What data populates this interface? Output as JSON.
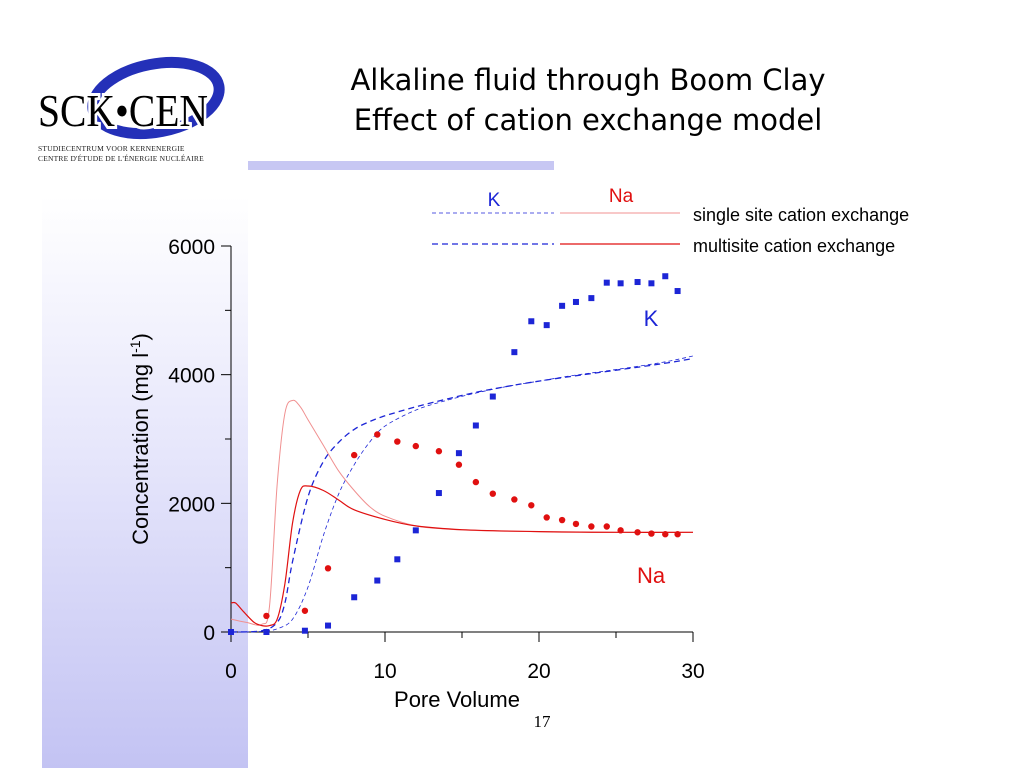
{
  "slide": {
    "title_line1": "Alkaline fluid through Boom Clay",
    "title_line2": "Effect of cation exchange model",
    "number": "17"
  },
  "logo": {
    "text": "SCK•CEN",
    "subtitle_line1": "STUDIECENTRUM VOOR KERNENERGIE",
    "subtitle_line2": "CENTRE D'ÉTUDE DE L'ÉNERGIE NUCLÉAIRE"
  },
  "colors": {
    "K": "#1c25d6",
    "Na": "#e01010",
    "Na_light": "#f09090",
    "accent_bar": "#c7c7f3"
  },
  "chart_data": {
    "type": "scatter",
    "xlabel": "Pore Volume",
    "ylabel": "Concentration (mg l",
    "ylabel_sup": "-1",
    "ylabel_end": ")",
    "xlim": [
      0,
      30
    ],
    "ylim": [
      0,
      6000
    ],
    "xticks": [
      0,
      10,
      20,
      30
    ],
    "yticks": [
      0,
      2000,
      4000,
      6000
    ],
    "grid": false,
    "legend": {
      "placement": "top-right",
      "col_K": "K",
      "col_Na": "Na",
      "row_single": "single site cation exchange",
      "row_multi": "multisite cation exchange"
    },
    "annotations": {
      "K": "K",
      "Na": "Na"
    },
    "series": [
      {
        "name": "K",
        "kind": "points",
        "color": "#1c25d6",
        "x": [
          0,
          2.3,
          4.8,
          6.3,
          8.0,
          9.5,
          10.8,
          12.0,
          13.5,
          14.8,
          15.9,
          17.0,
          18.4,
          19.5,
          20.5,
          21.5,
          22.4,
          23.4,
          24.4,
          25.3,
          26.4,
          27.3,
          28.2,
          29.0
        ],
        "y": [
          0,
          0,
          20,
          100,
          540,
          800,
          1130,
          1580,
          2160,
          2780,
          3210,
          3660,
          4350,
          4830,
          4770,
          5070,
          5130,
          5190,
          5430,
          5420,
          5440,
          5420,
          5530,
          5300
        ]
      },
      {
        "name": "Na",
        "kind": "points",
        "color": "#e01010",
        "x": [
          2.3,
          4.8,
          6.3,
          8.0,
          9.5,
          10.8,
          12.0,
          13.5,
          14.8,
          15.9,
          17.0,
          18.4,
          19.5,
          20.5,
          21.5,
          22.4,
          23.4,
          24.4,
          25.3,
          26.4,
          27.3,
          28.2,
          29.0
        ],
        "y": [
          250,
          330,
          990,
          2750,
          3070,
          2960,
          2890,
          2810,
          2600,
          2330,
          2150,
          2060,
          1970,
          1780,
          1740,
          1680,
          1640,
          1640,
          1580,
          1550,
          1530,
          1520,
          1520
        ]
      },
      {
        "name": "K single site cation exchange",
        "kind": "line",
        "style": "dashed-thin",
        "color": "#1c25d6",
        "x": [
          0,
          2,
          3,
          4,
          5,
          6,
          7,
          8,
          9,
          10,
          12,
          14,
          16,
          18,
          20,
          22,
          25,
          28,
          30
        ],
        "y": [
          0,
          10,
          50,
          200,
          700,
          1500,
          2150,
          2600,
          2950,
          3200,
          3450,
          3600,
          3720,
          3820,
          3900,
          3980,
          4080,
          4190,
          4290
        ]
      },
      {
        "name": "K multisite cation exchange",
        "kind": "line",
        "style": "dashed",
        "color": "#1c25d6",
        "x": [
          0,
          2,
          3,
          3.5,
          4,
          5,
          6,
          7,
          8,
          9,
          10,
          12,
          14,
          16,
          18,
          20,
          22,
          25,
          28,
          30
        ],
        "y": [
          0,
          20,
          150,
          450,
          1100,
          2100,
          2650,
          2950,
          3150,
          3270,
          3360,
          3500,
          3620,
          3730,
          3820,
          3900,
          3970,
          4070,
          4170,
          4250
        ]
      },
      {
        "name": "Na single site cation exchange",
        "kind": "line",
        "style": "thin",
        "color": "#f09090",
        "x": [
          0,
          1,
          2,
          2.5,
          3,
          3.5,
          4,
          4.5,
          5,
          6,
          7,
          8,
          9,
          10,
          12,
          14,
          17,
          20,
          25,
          30
        ],
        "y": [
          200,
          150,
          120,
          400,
          2300,
          3400,
          3600,
          3500,
          3300,
          2900,
          2500,
          2200,
          1950,
          1800,
          1650,
          1600,
          1570,
          1560,
          1550,
          1550
        ]
      },
      {
        "name": "Na multisite cation exchange",
        "kind": "line",
        "style": "solid",
        "color": "#e01010",
        "x": [
          0,
          0.3,
          0.8,
          1.5,
          2,
          2.5,
          3,
          3.5,
          4,
          4.5,
          5,
          6,
          7,
          8,
          10,
          12,
          15,
          20,
          25,
          30
        ],
        "y": [
          450,
          450,
          320,
          150,
          100,
          100,
          200,
          750,
          1700,
          2200,
          2270,
          2200,
          2050,
          1900,
          1750,
          1650,
          1590,
          1560,
          1550,
          1550
        ]
      }
    ]
  }
}
